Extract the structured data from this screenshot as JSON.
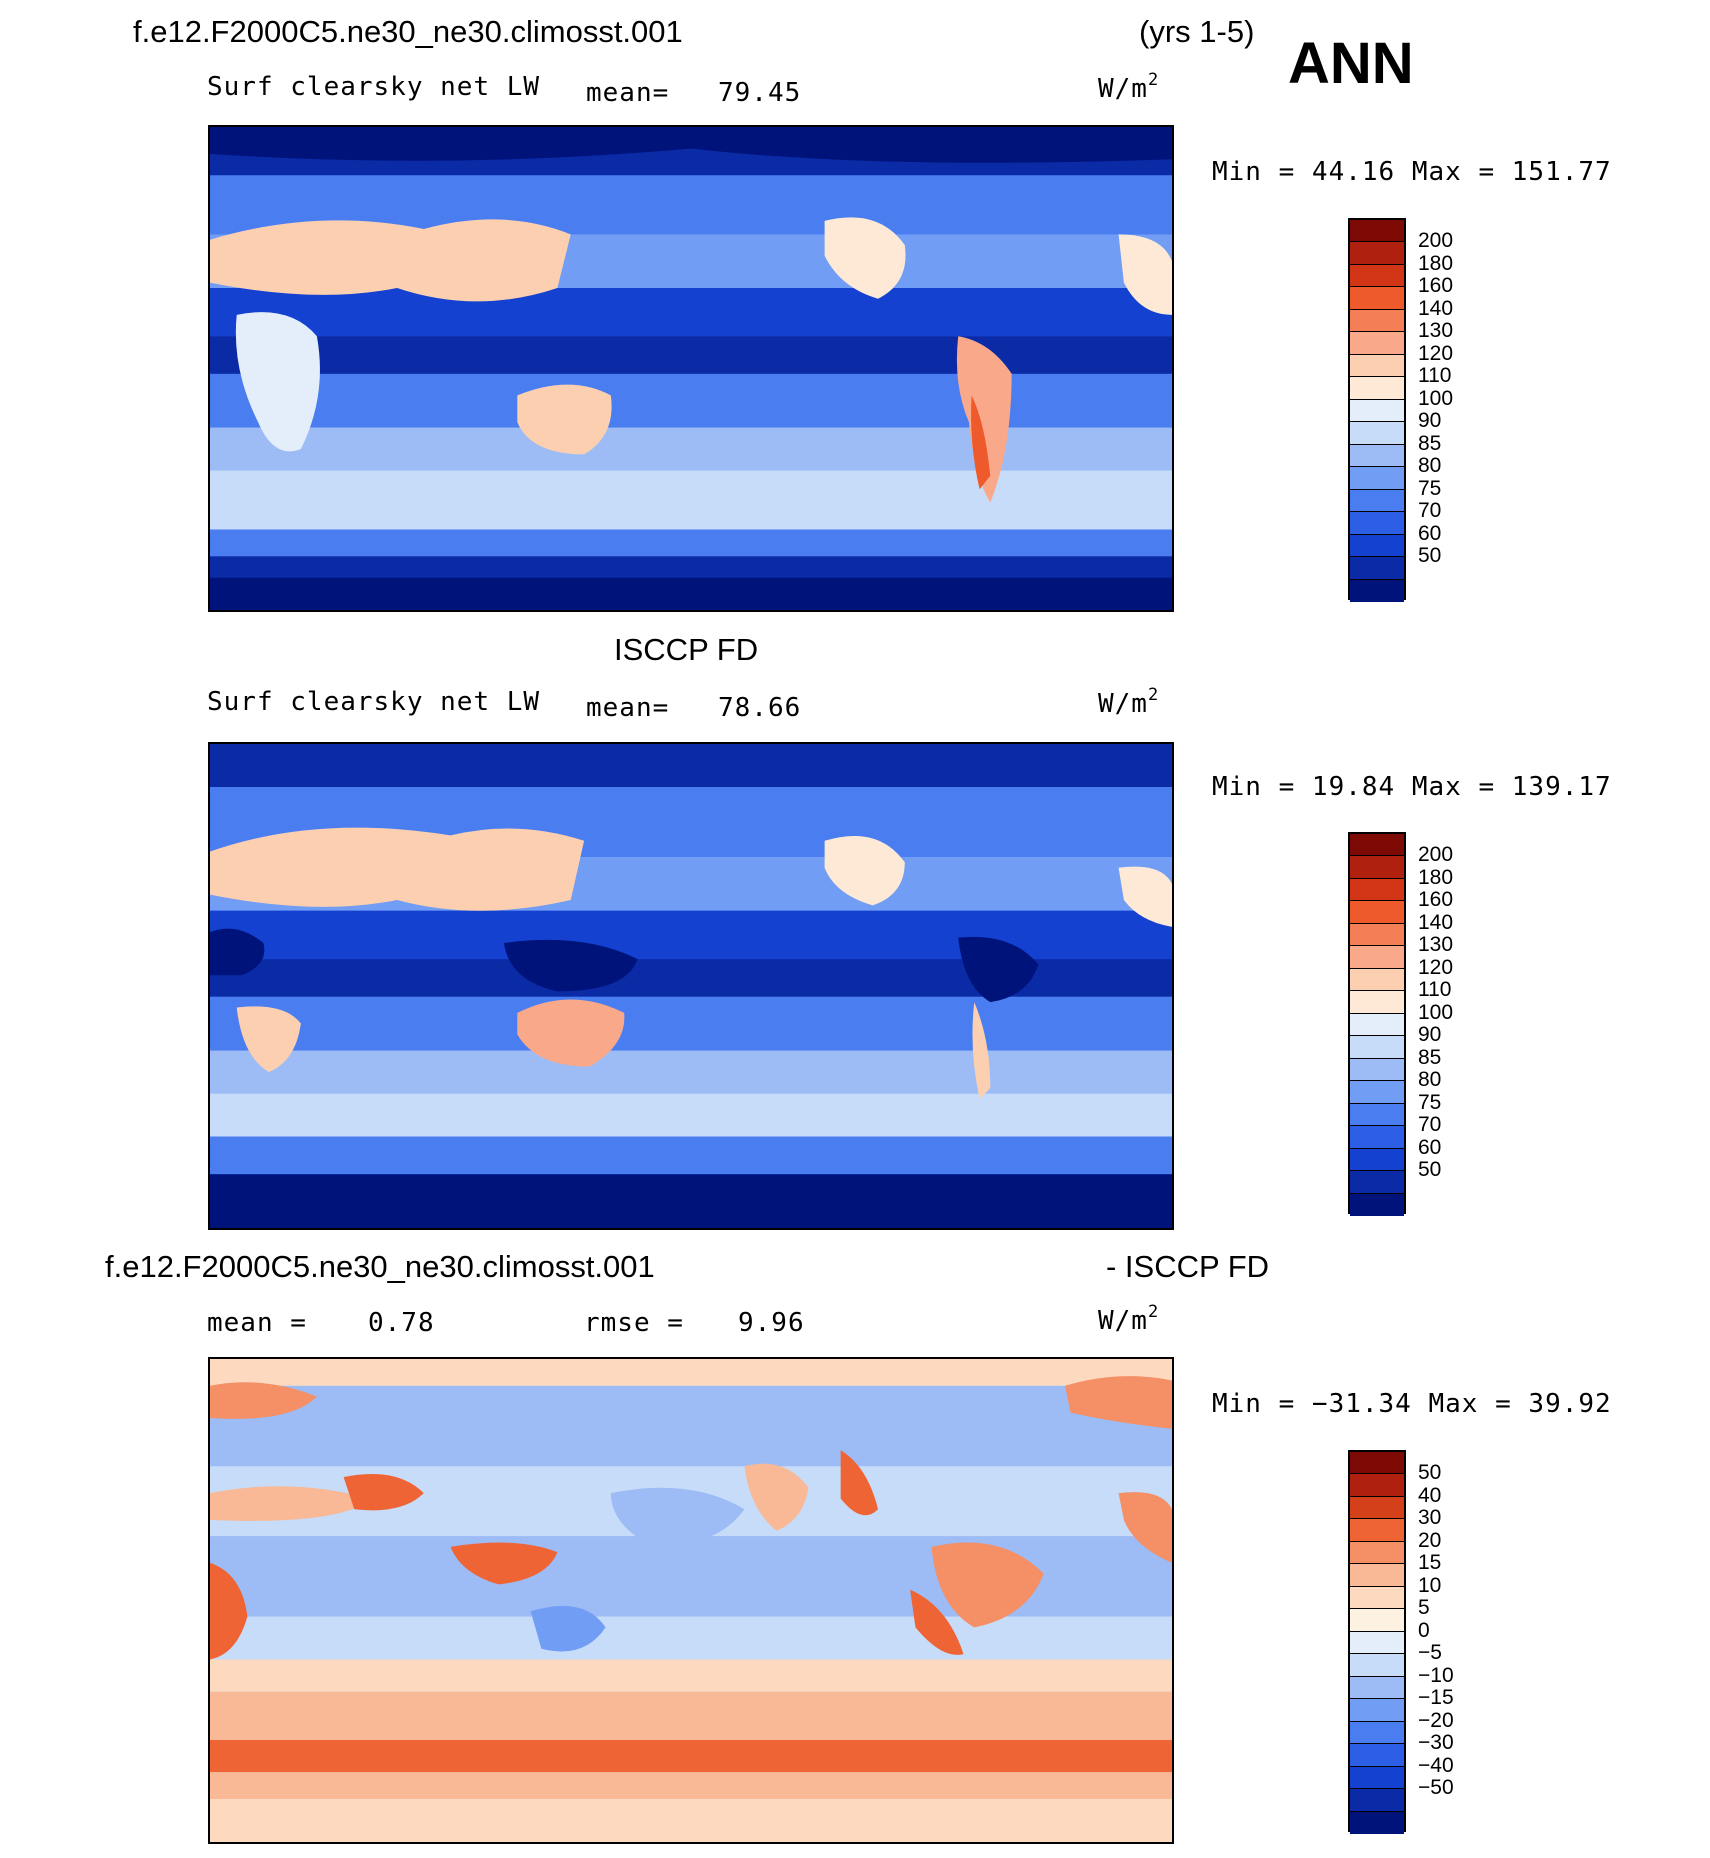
{
  "header": {
    "case_title": "f.e12.F2000C5.ne30_ne30.climosst.001",
    "years": "(yrs 1-5)",
    "season": "ANN"
  },
  "panels": [
    {
      "title": "",
      "variable": "Surf clearsky net LW",
      "mean_label": "mean=",
      "mean_value": "79.45",
      "units": "W/m",
      "units_exp": "2",
      "minmax_label": "Min =   44.16 Max = 151.77",
      "colorbar_labels": [
        "200",
        "180",
        "160",
        "140",
        "130",
        "120",
        "110",
        "100",
        "90",
        "85",
        "80",
        "75",
        "70",
        "60",
        "50"
      ]
    },
    {
      "title": "ISCCP FD",
      "variable": "Surf clearsky net LW",
      "mean_label": "mean=",
      "mean_value": "78.66",
      "units": "W/m",
      "units_exp": "2",
      "minmax_label": "Min =   19.84 Max = 139.17",
      "colorbar_labels": [
        "200",
        "180",
        "160",
        "140",
        "130",
        "120",
        "110",
        "100",
        "90",
        "85",
        "80",
        "75",
        "70",
        "60",
        "50"
      ]
    },
    {
      "title_left": "f.e12.F2000C5.ne30_ne30.climosst.001",
      "title_right": "- ISCCP FD",
      "mean_label": "mean =",
      "mean_value": "0.78",
      "rmse_label": "rmse =",
      "rmse_value": "9.96",
      "units": "W/m",
      "units_exp": "2",
      "minmax_label": "Min = −31.34 Max =   39.92",
      "colorbar_labels": [
        "50",
        "40",
        "30",
        "20",
        "15",
        "10",
        "5",
        "0",
        "−5",
        "−10",
        "−15",
        "−20",
        "−30",
        "−40",
        "−50"
      ]
    }
  ],
  "colors": {
    "field_palette": [
      "#00137a",
      "#0a2aa6",
      "#1441d0",
      "#2c5fe6",
      "#4a7ef0",
      "#719df4",
      "#9dbcf6",
      "#c7dcf8",
      "#e4eefa",
      "#fde9d6",
      "#fbcfb0",
      "#f9a98a",
      "#f47e56",
      "#ef5a2c",
      "#d23515",
      "#b0200f",
      "#7e0a06"
    ],
    "diff_palette": [
      "#00137a",
      "#0a2aa6",
      "#1441d0",
      "#2c5fe6",
      "#4a7ef0",
      "#719df4",
      "#9dbcf6",
      "#c7dcf8",
      "#e4eefa",
      "#fdf1e2",
      "#fcd9bf",
      "#f9b896",
      "#f48f66",
      "#ef6434",
      "#d4401a",
      "#b0200f",
      "#7e0a06"
    ]
  }
}
